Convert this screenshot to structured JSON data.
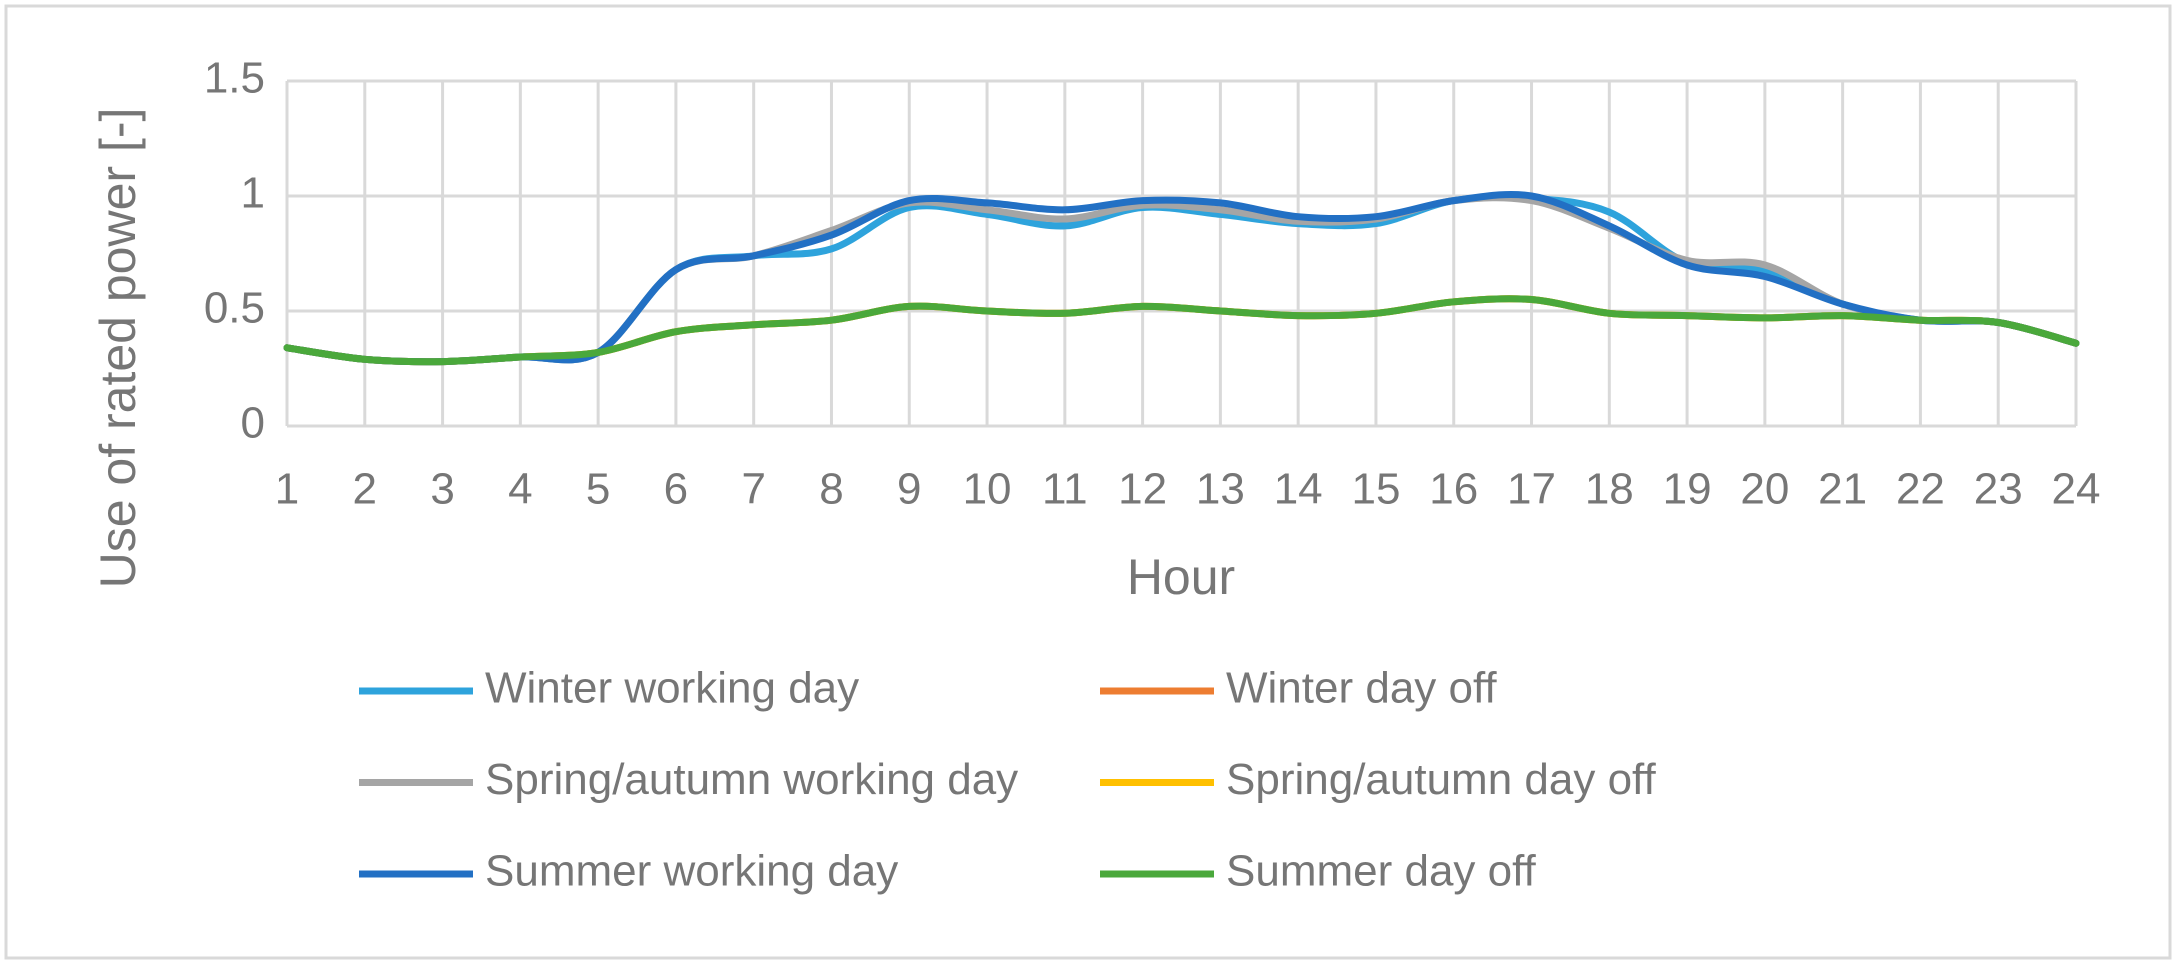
{
  "chart_data": {
    "type": "line",
    "x_label": "Hour",
    "y_label": "Use of rated power [-]",
    "x": [
      1,
      2,
      3,
      4,
      5,
      6,
      7,
      8,
      9,
      10,
      11,
      12,
      13,
      14,
      15,
      16,
      17,
      18,
      19,
      20,
      21,
      22,
      23,
      24
    ],
    "xlim": [
      1,
      24
    ],
    "xticks": [
      1,
      2,
      3,
      4,
      5,
      6,
      7,
      8,
      9,
      10,
      11,
      12,
      13,
      14,
      15,
      16,
      17,
      18,
      19,
      20,
      21,
      22,
      23,
      24
    ],
    "ylim": [
      0,
      1.5
    ],
    "yticks": [
      0,
      0.5,
      1,
      1.5
    ],
    "grid": true,
    "legend": "bottom",
    "smooth": true,
    "series": [
      {
        "name": "Winter working day",
        "color": "#2ea3dc",
        "values": [
          0.34,
          0.29,
          0.28,
          0.3,
          0.32,
          0.68,
          0.74,
          0.77,
          0.95,
          0.92,
          0.87,
          0.95,
          0.92,
          0.88,
          0.88,
          0.98,
          0.99,
          0.93,
          0.71,
          0.68,
          0.53,
          0.46,
          0.45,
          0.36
        ]
      },
      {
        "name": "Winter day off",
        "color": "#ed7d31",
        "values": [
          0.34,
          0.29,
          0.28,
          0.3,
          0.32,
          0.41,
          0.44,
          0.46,
          0.52,
          0.5,
          0.49,
          0.52,
          0.5,
          0.48,
          0.49,
          0.54,
          0.55,
          0.49,
          0.48,
          0.47,
          0.48,
          0.46,
          0.45,
          0.36
        ]
      },
      {
        "name": "Spring/autumn working day",
        "color": "#a5a5a5",
        "values": [
          0.34,
          0.29,
          0.28,
          0.3,
          0.32,
          0.68,
          0.74,
          0.85,
          0.97,
          0.94,
          0.9,
          0.96,
          0.94,
          0.89,
          0.9,
          0.98,
          0.98,
          0.86,
          0.72,
          0.7,
          0.53,
          0.46,
          0.45,
          0.36
        ]
      },
      {
        "name": "Spring/autumn day off",
        "color": "#ffc000",
        "values": [
          0.34,
          0.29,
          0.28,
          0.3,
          0.32,
          0.41,
          0.44,
          0.46,
          0.52,
          0.5,
          0.49,
          0.52,
          0.5,
          0.48,
          0.49,
          0.54,
          0.55,
          0.49,
          0.48,
          0.47,
          0.48,
          0.46,
          0.45,
          0.36
        ]
      },
      {
        "name": "Summer working day",
        "color": "#2270c4",
        "values": [
          0.34,
          0.29,
          0.28,
          0.3,
          0.32,
          0.68,
          0.74,
          0.83,
          0.98,
          0.97,
          0.94,
          0.98,
          0.97,
          0.91,
          0.91,
          0.98,
          1.0,
          0.87,
          0.7,
          0.65,
          0.53,
          0.46,
          0.45,
          0.36
        ]
      },
      {
        "name": "Summer day off",
        "color": "#4aa83b",
        "values": [
          0.34,
          0.29,
          0.28,
          0.3,
          0.32,
          0.41,
          0.44,
          0.46,
          0.52,
          0.5,
          0.49,
          0.52,
          0.5,
          0.48,
          0.49,
          0.54,
          0.55,
          0.49,
          0.48,
          0.47,
          0.48,
          0.46,
          0.45,
          0.36
        ]
      }
    ]
  }
}
